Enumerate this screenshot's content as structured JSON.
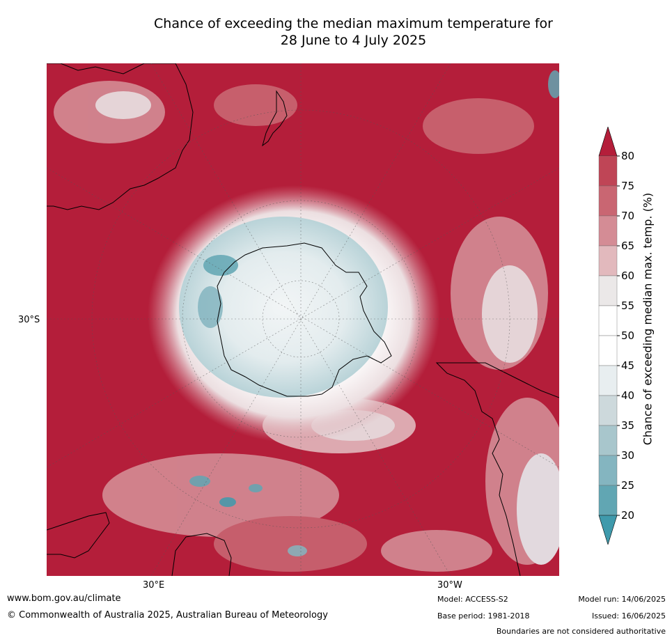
{
  "title": {
    "line1": "Chance of exceeding the median maximum temperature for",
    "line2": "28 June to 4 July 2025"
  },
  "axes": {
    "lat_label": "30°S",
    "lon_label_left": "30°E",
    "lon_label_right": "30°W"
  },
  "colorbar": {
    "title": "Chance of exceeding median max. temp. (%)",
    "ticks": [
      "80",
      "75",
      "70",
      "65",
      "60",
      "55",
      "50",
      "45",
      "40",
      "35",
      "30",
      "25",
      "20"
    ],
    "colors": [
      "#b41e3a",
      "#bf4556",
      "#c96672",
      "#d48c95",
      "#e2b9bd",
      "#ebe8e8",
      "#ffffff",
      "#ffffff",
      "#e8eef0",
      "#cdd9dc",
      "#a8c6cc",
      "#84b5c0",
      "#61a6b3",
      "#3f9aac"
    ],
    "top_arrow_color": "#b41e3a",
    "bottom_arrow_color": "#3f9aac"
  },
  "footer": {
    "website": "www.bom.gov.au/climate",
    "copyright": "© Commonwealth of Australia 2025, Australian Bureau of Meteorology",
    "model": "Model: ACCESS-S2",
    "base_period": "Base period: 1981-2018",
    "model_run": "Model run: 14/06/2025",
    "issued": "Issued: 16/06/2025",
    "disclaimer": "Boundaries are not considered authoritative"
  }
}
